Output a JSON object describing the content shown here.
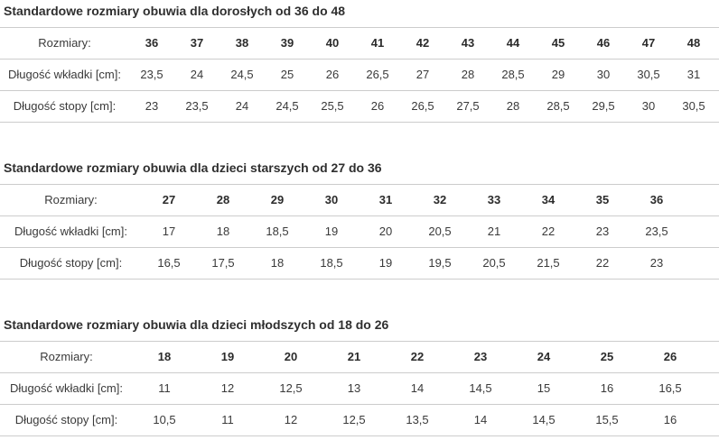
{
  "row_labels": {
    "sizes": "Rozmiary:",
    "insole": "Długość wkładki [cm]:",
    "foot": "Długość stopy [cm]:"
  },
  "chart_data": [
    {
      "type": "table",
      "title": "Standardowe rozmiary obuwia dla dorosłych od 36 do 48",
      "row_labels": [
        "Rozmiary:",
        "Długość wkładki [cm]:",
        "Długość stopy [cm]:"
      ],
      "sizes": [
        "36",
        "37",
        "38",
        "39",
        "40",
        "41",
        "42",
        "43",
        "44",
        "45",
        "46",
        "47",
        "48"
      ],
      "insole_length_cm": [
        "23,5",
        "24",
        "24,5",
        "25",
        "26",
        "26,5",
        "27",
        "28",
        "28,5",
        "29",
        "30",
        "30,5",
        "31"
      ],
      "foot_length_cm": [
        "23",
        "23,5",
        "24",
        "24,5",
        "25,5",
        "26",
        "26,5",
        "27,5",
        "28",
        "28,5",
        "29,5",
        "30",
        "30,5"
      ]
    },
    {
      "type": "table",
      "title": "Standardowe rozmiary obuwia dla dzieci starszych od 27 do 36",
      "row_labels": [
        "Rozmiary:",
        "Długość wkładki [cm]:",
        "Długość stopy [cm]:"
      ],
      "sizes": [
        "27",
        "28",
        "29",
        "30",
        "31",
        "32",
        "33",
        "34",
        "35",
        "36"
      ],
      "insole_length_cm": [
        "17",
        "18",
        "18,5",
        "19",
        "20",
        "20,5",
        "21",
        "22",
        "23",
        "23,5"
      ],
      "foot_length_cm": [
        "16,5",
        "17,5",
        "18",
        "18,5",
        "19",
        "19,5",
        "20,5",
        "21,5",
        "22",
        "23"
      ]
    },
    {
      "type": "table",
      "title": "Standardowe rozmiary obuwia dla dzieci młodszych od 18 do 26",
      "row_labels": [
        "Rozmiary:",
        "Długość wkładki [cm]:",
        "Długość stopy [cm]:"
      ],
      "sizes": [
        "18",
        "19",
        "20",
        "21",
        "22",
        "23",
        "24",
        "25",
        "26"
      ],
      "insole_length_cm": [
        "11",
        "12",
        "12,5",
        "13",
        "14",
        "14,5",
        "15",
        "16",
        "16,5"
      ],
      "foot_length_cm": [
        "10,5",
        "11",
        "12",
        "12,5",
        "13,5",
        "14",
        "14,5",
        "15,5",
        "16"
      ]
    }
  ],
  "colors": {
    "background": "#ffffff",
    "title_text": "#2f2f2f",
    "table_text": "#3a3a3a",
    "bold_text": "#2b2b2b",
    "border": "#cccccc"
  }
}
